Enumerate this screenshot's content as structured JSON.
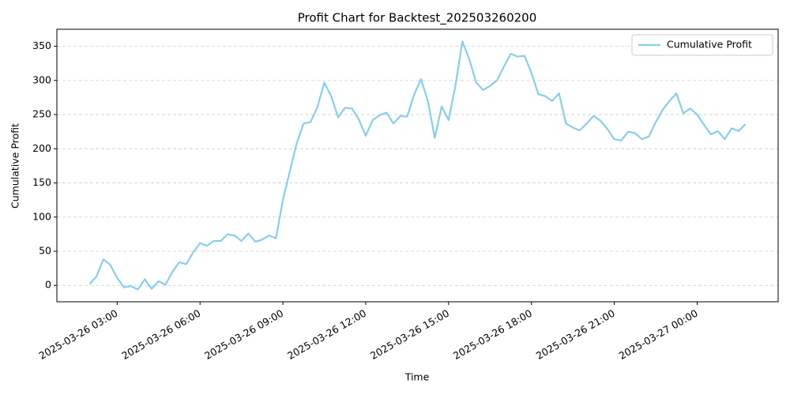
{
  "chart_data": {
    "type": "line",
    "title": "Profit Chart for Backtest_202503260200",
    "xlabel": "Time",
    "ylabel": "Cumulative Profit",
    "x": [
      "2025-03-26 02:00",
      "2025-03-26 02:15",
      "2025-03-26 02:30",
      "2025-03-26 02:45",
      "2025-03-26 03:00",
      "2025-03-26 03:15",
      "2025-03-26 03:30",
      "2025-03-26 03:45",
      "2025-03-26 04:00",
      "2025-03-26 04:15",
      "2025-03-26 04:30",
      "2025-03-26 04:45",
      "2025-03-26 05:00",
      "2025-03-26 05:15",
      "2025-03-26 05:30",
      "2025-03-26 05:45",
      "2025-03-26 06:00",
      "2025-03-26 06:15",
      "2025-03-26 06:30",
      "2025-03-26 06:45",
      "2025-03-26 07:00",
      "2025-03-26 07:15",
      "2025-03-26 07:30",
      "2025-03-26 07:45",
      "2025-03-26 08:00",
      "2025-03-26 08:15",
      "2025-03-26 08:30",
      "2025-03-26 08:45",
      "2025-03-26 09:00",
      "2025-03-26 09:15",
      "2025-03-26 09:30",
      "2025-03-26 09:45",
      "2025-03-26 10:00",
      "2025-03-26 10:15",
      "2025-03-26 10:30",
      "2025-03-26 10:45",
      "2025-03-26 11:00",
      "2025-03-26 11:15",
      "2025-03-26 11:30",
      "2025-03-26 11:45",
      "2025-03-26 12:00",
      "2025-03-26 12:15",
      "2025-03-26 12:30",
      "2025-03-26 12:45",
      "2025-03-26 13:00",
      "2025-03-26 13:15",
      "2025-03-26 13:30",
      "2025-03-26 13:45",
      "2025-03-26 14:00",
      "2025-03-26 14:15",
      "2025-03-26 14:30",
      "2025-03-26 14:45",
      "2025-03-26 15:00",
      "2025-03-26 15:15",
      "2025-03-26 15:30",
      "2025-03-26 15:45",
      "2025-03-26 16:00",
      "2025-03-26 16:15",
      "2025-03-26 16:30",
      "2025-03-26 16:45",
      "2025-03-26 17:00",
      "2025-03-26 17:15",
      "2025-03-26 17:30",
      "2025-03-26 17:45",
      "2025-03-26 18:00",
      "2025-03-26 18:15",
      "2025-03-26 18:30",
      "2025-03-26 18:45",
      "2025-03-26 19:00",
      "2025-03-26 19:15",
      "2025-03-26 19:30",
      "2025-03-26 19:45",
      "2025-03-26 20:00",
      "2025-03-26 20:15",
      "2025-03-26 20:30",
      "2025-03-26 20:45",
      "2025-03-26 21:00",
      "2025-03-26 21:15",
      "2025-03-26 21:30",
      "2025-03-26 21:45",
      "2025-03-26 22:00",
      "2025-03-26 22:15",
      "2025-03-26 22:30",
      "2025-03-26 22:45",
      "2025-03-26 23:00",
      "2025-03-26 23:15",
      "2025-03-26 23:30",
      "2025-03-26 23:45",
      "2025-03-27 00:00",
      "2025-03-27 00:15",
      "2025-03-27 00:30",
      "2025-03-27 00:45",
      "2025-03-27 01:00",
      "2025-03-27 01:15",
      "2025-03-27 01:30",
      "2025-03-27 01:45"
    ],
    "series": [
      {
        "name": "Cumulative Profit",
        "color": "#87ceeb",
        "values": [
          2,
          13,
          38,
          30,
          11,
          -3,
          -1,
          -6,
          9,
          -5,
          6,
          1,
          20,
          34,
          31,
          48,
          62,
          58,
          65,
          65,
          75,
          73,
          65,
          76,
          64,
          67,
          73,
          69,
          125,
          167,
          208,
          237,
          239,
          261,
          297,
          277,
          246,
          260,
          259,
          243,
          219,
          242,
          249,
          253,
          237,
          248,
          247,
          279,
          302,
          270,
          216,
          262,
          242,
          293,
          357,
          331,
          297,
          286,
          292,
          300,
          320,
          339,
          335,
          336,
          311,
          280,
          277,
          270,
          281,
          237,
          231,
          227,
          237,
          248,
          241,
          229,
          214,
          212,
          225,
          223,
          214,
          218,
          239,
          257,
          270,
          281,
          252,
          259,
          250,
          235,
          221,
          226,
          214,
          230,
          226,
          236
        ]
      }
    ],
    "xlim": [
      "2025-03-26 00:49",
      "2025-03-27 02:56"
    ],
    "xticks": [
      "2025-03-26 03:00",
      "2025-03-26 06:00",
      "2025-03-26 09:00",
      "2025-03-26 12:00",
      "2025-03-26 15:00",
      "2025-03-26 18:00",
      "2025-03-26 21:00",
      "2025-03-27 00:00"
    ],
    "ylim": [
      -24,
      375
    ],
    "yticks": [
      0,
      50,
      100,
      150,
      200,
      250,
      300,
      350
    ],
    "grid": "y",
    "legend": "upper right"
  }
}
